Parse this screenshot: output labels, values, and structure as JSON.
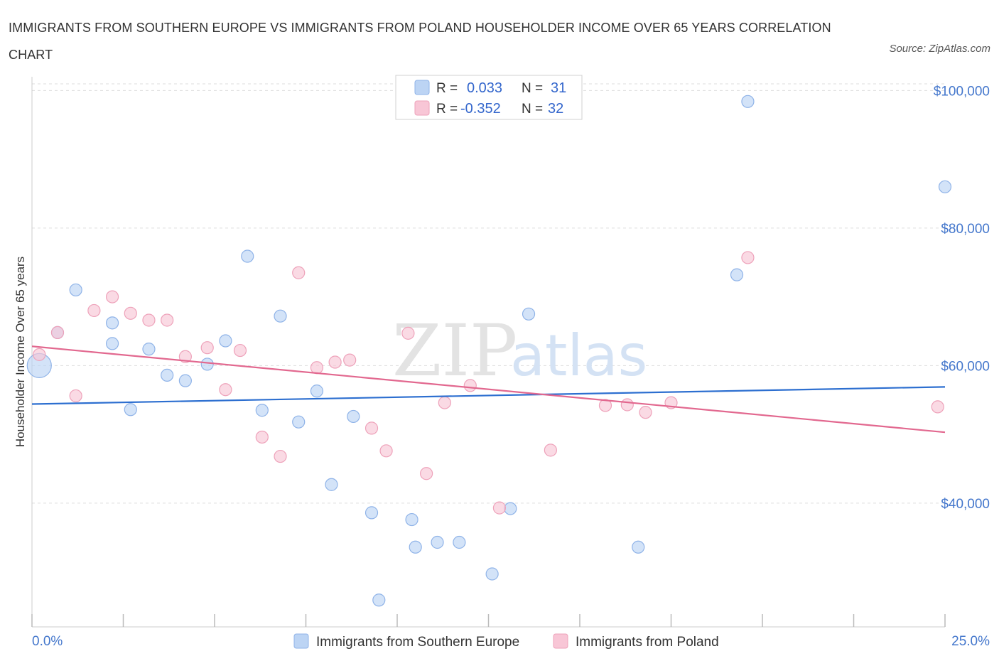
{
  "header": {
    "title": "IMMIGRANTS FROM SOUTHERN EUROPE VS IMMIGRANTS FROM POLAND HOUSEHOLDER INCOME OVER 65 YEARS CORRELATION CHART",
    "source": "Source: ZipAtlas.com"
  },
  "watermark": {
    "zip": "ZIP",
    "atlas": "atlas"
  },
  "stats_legend": {
    "r_label": "R =",
    "n_label": "N =",
    "rows": [
      {
        "r": "0.033",
        "n": "31"
      },
      {
        "r": "-0.352",
        "n": "32"
      }
    ]
  },
  "colors": {
    "blue_fill": "#bcd4f4",
    "blue_stroke": "#8fb3e8",
    "blue_line": "#2d6fd0",
    "pink_fill": "#f8c6d6",
    "pink_stroke": "#eea2ba",
    "pink_line": "#e2688f",
    "grid": "#dddddd",
    "axis_text": "#4477cc"
  },
  "chart_data": {
    "type": "scatter",
    "title": "IMMIGRANTS FROM SOUTHERN EUROPE VS IMMIGRANTS FROM POLAND HOUSEHOLDER INCOME OVER 65 YEARS CORRELATION CHART",
    "xlabel": "",
    "ylabel": "Householder Income Over 65 years",
    "xlim": [
      0,
      25
    ],
    "ylim": [
      22000,
      102000
    ],
    "x_tick_labels": [
      "0.0%",
      "25.0%"
    ],
    "y_ticks": [
      40000,
      60000,
      80000,
      100000
    ],
    "y_tick_labels": [
      "$40,000",
      "$60,000",
      "$80,000",
      "$100,000"
    ],
    "grid": true,
    "legend_position": "bottom-center",
    "series": [
      {
        "name": "Immigrants from Southern Europe",
        "color": "#bcd4f4",
        "trend": [
          [
            0,
            54400
          ],
          [
            25,
            56900
          ]
        ],
        "points": [
          {
            "x": 0.2,
            "y": 60000,
            "big": true
          },
          {
            "x": 0.7,
            "y": 64800
          },
          {
            "x": 1.2,
            "y": 71000
          },
          {
            "x": 2.2,
            "y": 66200
          },
          {
            "x": 2.7,
            "y": 53600
          },
          {
            "x": 2.2,
            "y": 63200
          },
          {
            "x": 3.2,
            "y": 62400
          },
          {
            "x": 3.7,
            "y": 58600
          },
          {
            "x": 4.2,
            "y": 57800
          },
          {
            "x": 4.8,
            "y": 60200
          },
          {
            "x": 5.3,
            "y": 63600
          },
          {
            "x": 5.9,
            "y": 75900
          },
          {
            "x": 6.3,
            "y": 53500
          },
          {
            "x": 6.8,
            "y": 67200
          },
          {
            "x": 7.3,
            "y": 51800
          },
          {
            "x": 7.8,
            "y": 56300
          },
          {
            "x": 8.2,
            "y": 42700
          },
          {
            "x": 8.8,
            "y": 52600
          },
          {
            "x": 9.3,
            "y": 38600
          },
          {
            "x": 9.5,
            "y": 25900
          },
          {
            "x": 10.4,
            "y": 37600
          },
          {
            "x": 10.5,
            "y": 33600
          },
          {
            "x": 11.1,
            "y": 34300
          },
          {
            "x": 11.7,
            "y": 34300
          },
          {
            "x": 12.6,
            "y": 29700
          },
          {
            "x": 13.1,
            "y": 39200
          },
          {
            "x": 13.6,
            "y": 67500
          },
          {
            "x": 16.6,
            "y": 33600
          },
          {
            "x": 19.3,
            "y": 73200
          },
          {
            "x": 19.6,
            "y": 98400
          },
          {
            "x": 25.0,
            "y": 86000
          }
        ]
      },
      {
        "name": "Immigrants from Poland",
        "color": "#f8c6d6",
        "trend": [
          [
            0,
            62800
          ],
          [
            25,
            50300
          ]
        ],
        "points": [
          {
            "x": 0.2,
            "y": 61600
          },
          {
            "x": 0.7,
            "y": 64800
          },
          {
            "x": 1.2,
            "y": 55600
          },
          {
            "x": 1.7,
            "y": 68000
          },
          {
            "x": 2.2,
            "y": 70000
          },
          {
            "x": 2.7,
            "y": 67600
          },
          {
            "x": 3.2,
            "y": 66600
          },
          {
            "x": 3.7,
            "y": 66600
          },
          {
            "x": 4.2,
            "y": 61300
          },
          {
            "x": 4.8,
            "y": 62600
          },
          {
            "x": 5.3,
            "y": 56500
          },
          {
            "x": 5.7,
            "y": 62200
          },
          {
            "x": 6.3,
            "y": 49600
          },
          {
            "x": 6.8,
            "y": 46800
          },
          {
            "x": 7.3,
            "y": 73500
          },
          {
            "x": 7.8,
            "y": 59700
          },
          {
            "x": 8.3,
            "y": 60500
          },
          {
            "x": 8.7,
            "y": 60800
          },
          {
            "x": 9.3,
            "y": 50900
          },
          {
            "x": 9.7,
            "y": 47600
          },
          {
            "x": 10.3,
            "y": 64700
          },
          {
            "x": 10.8,
            "y": 44300
          },
          {
            "x": 11.3,
            "y": 54600
          },
          {
            "x": 12.0,
            "y": 57100
          },
          {
            "x": 12.8,
            "y": 39300
          },
          {
            "x": 14.2,
            "y": 47700
          },
          {
            "x": 15.7,
            "y": 54200
          },
          {
            "x": 16.3,
            "y": 54300
          },
          {
            "x": 16.8,
            "y": 53200
          },
          {
            "x": 17.5,
            "y": 54600
          },
          {
            "x": 19.6,
            "y": 75700
          },
          {
            "x": 24.8,
            "y": 54000
          }
        ]
      }
    ]
  }
}
